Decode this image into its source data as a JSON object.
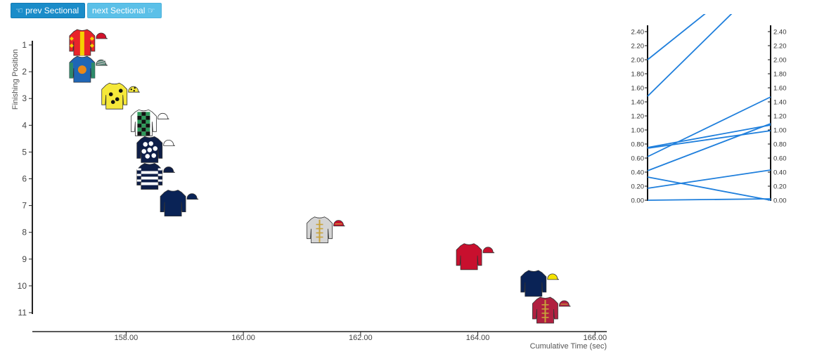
{
  "buttons": {
    "prev_label": "prev Sectional",
    "prev_icon": "hand-pointing-left-icon",
    "next_label": "next Sectional",
    "next_icon": "hand-pointing-right-icon"
  },
  "chart_data": [
    {
      "type": "scatter",
      "xlabel": "Cumulative Time (sec)",
      "ylabel": "Finishing Position",
      "xlim": [
        156.4,
        166.2
      ],
      "ylim": [
        1,
        11
      ],
      "y_inverted": true,
      "xticks": [
        "158.00",
        "160.00",
        "162.00",
        "164.00",
        "166.00"
      ],
      "yticks": [
        "1",
        "2",
        "3",
        "4",
        "5",
        "6",
        "7",
        "8",
        "9",
        "10",
        "11"
      ],
      "marker": "jockey-silks-icon",
      "points": [
        {
          "position": 1,
          "time": 157.25,
          "silks": "red-yellow-diamonds",
          "primary": "#e8232a",
          "secondary": "#f5d100",
          "cap": "#d0112b"
        },
        {
          "position": 2,
          "time": 157.25,
          "silks": "blue-orange-disc",
          "primary": "#1f66b6",
          "secondary": "#e8881a",
          "cap": "#5a8a7a"
        },
        {
          "position": 3,
          "time": 157.8,
          "silks": "yellow-black-spots",
          "primary": "#f5e83a",
          "secondary": "#111111",
          "cap": "#f5e83a"
        },
        {
          "position": 4,
          "time": 158.3,
          "silks": "green-black-check",
          "primary": "#ffffff",
          "secondary": "#2e9a5a",
          "cap": "#ffffff"
        },
        {
          "position": 5,
          "time": 158.4,
          "silks": "navy-white-spots",
          "primary": "#0e1e47",
          "secondary": "#ffffff",
          "cap": "#ffffff"
        },
        {
          "position": 6,
          "time": 158.4,
          "silks": "navy-white-hoops",
          "primary": "#0e1e47",
          "secondary": "#ffffff",
          "cap": "#0e1e47"
        },
        {
          "position": 7,
          "time": 158.8,
          "silks": "navy",
          "primary": "#0a2356",
          "secondary": "#0a2356",
          "cap": "#0a2356"
        },
        {
          "position": 8,
          "time": 161.3,
          "silks": "grey-gold-braid",
          "primary": "#d4d4d4",
          "secondary": "#c8a23a",
          "cap": "#c8102e"
        },
        {
          "position": 9,
          "time": 163.85,
          "silks": "crimson",
          "primary": "#c8102e",
          "secondary": "#c8102e",
          "cap": "#c8102e"
        },
        {
          "position": 10,
          "time": 164.95,
          "silks": "navy-yellow-cap",
          "primary": "#0a2356",
          "secondary": "#0a2356",
          "cap": "#f5e300"
        },
        {
          "position": 11,
          "time": 165.15,
          "silks": "maroon-gold-braid",
          "primary": "#b02040",
          "secondary": "#c8a23a",
          "cap": "#b02040"
        }
      ]
    },
    {
      "type": "line",
      "subtype": "parallel-coordinates",
      "ylim": [
        0,
        2.4
      ],
      "left_ticks": [
        "2.40",
        "2.20",
        "2.00",
        "1.80",
        "1.60",
        "1.40",
        "1.20",
        "1.00",
        "0.80",
        "0.60",
        "0.40",
        "0.20",
        "0.00"
      ],
      "right_ticks": [
        "2.40",
        "2.20",
        "2.00",
        "1.80",
        "1.60",
        "1.40",
        "1.20",
        "1.00",
        "0.80",
        "0.60",
        "0.40",
        "0.20",
        "0.00"
      ],
      "line_color": "#1f7fdc",
      "lines": [
        {
          "left": 2.0,
          "right": 3.4
        },
        {
          "left": 1.48,
          "right": 3.2
        },
        {
          "left": 0.74,
          "right": 0.99
        },
        {
          "left": 0.75,
          "right": 1.07
        },
        {
          "left": 0.62,
          "right": 1.47
        },
        {
          "left": 0.42,
          "right": 1.09
        },
        {
          "left": 0.33,
          "right": 0.0
        },
        {
          "left": 0.17,
          "right": 0.43
        },
        {
          "left": 0.0,
          "right": 0.02
        }
      ]
    }
  ]
}
